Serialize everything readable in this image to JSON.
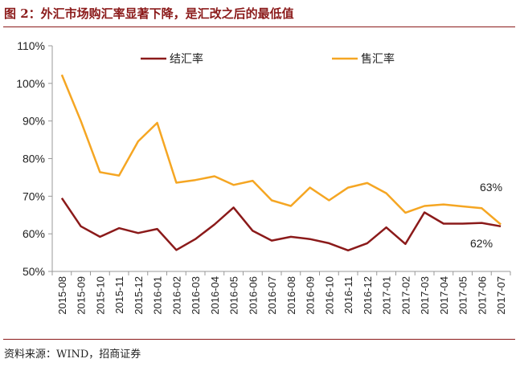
{
  "header": {
    "title": "图 2：外汇市场购汇率显著下降，是汇改之后的最低值"
  },
  "footer": {
    "source": "资料来源：WIND，招商证券"
  },
  "colors": {
    "settlement": "#8B1A1A",
    "sale": "#F5A623",
    "accent": "#8B1A1A",
    "axis": "#999999"
  },
  "chart_data": {
    "type": "line",
    "title": "",
    "xlabel": "",
    "ylabel": "",
    "ylim": [
      50,
      110
    ],
    "yticks": [
      50,
      60,
      70,
      80,
      90,
      100,
      110
    ],
    "ytick_labels": [
      "50%",
      "60%",
      "70%",
      "80%",
      "90%",
      "100%",
      "110%"
    ],
    "grid": false,
    "legend": "top",
    "categories": [
      "2015-08",
      "2015-09",
      "2015-10",
      "2015-11",
      "2015-12",
      "2016-01",
      "2016-02",
      "2016-03",
      "2016-04",
      "2016-05",
      "2016-06",
      "2016-07",
      "2016-08",
      "2016-09",
      "2016-10",
      "2016-11",
      "2016-12",
      "2017-01",
      "2017-02",
      "2017-03",
      "2017-04",
      "2017-05",
      "2017-06",
      "2017-07"
    ],
    "series": [
      {
        "name": "结汇率",
        "color": "#8B1A1A",
        "values": [
          69.5,
          62.0,
          59.2,
          61.5,
          60.2,
          61.3,
          55.7,
          58.6,
          62.5,
          67.0,
          60.8,
          58.2,
          59.2,
          58.6,
          57.5,
          55.6,
          57.5,
          61.7,
          57.3,
          65.7,
          62.7,
          62.7,
          62.9,
          62.0
        ]
      },
      {
        "name": "售汇率",
        "color": "#F5A623",
        "values": [
          102.3,
          90.0,
          76.4,
          75.5,
          84.6,
          89.5,
          73.6,
          74.3,
          75.3,
          73.0,
          74.1,
          68.9,
          67.4,
          72.3,
          68.9,
          72.3,
          73.5,
          70.8,
          65.6,
          67.4,
          67.8,
          67.3,
          66.8,
          62.5
        ]
      }
    ],
    "annotations": [
      {
        "text": "63%",
        "series": 1,
        "index": 23
      },
      {
        "text": "62%",
        "series": 0,
        "index": 23
      }
    ]
  }
}
